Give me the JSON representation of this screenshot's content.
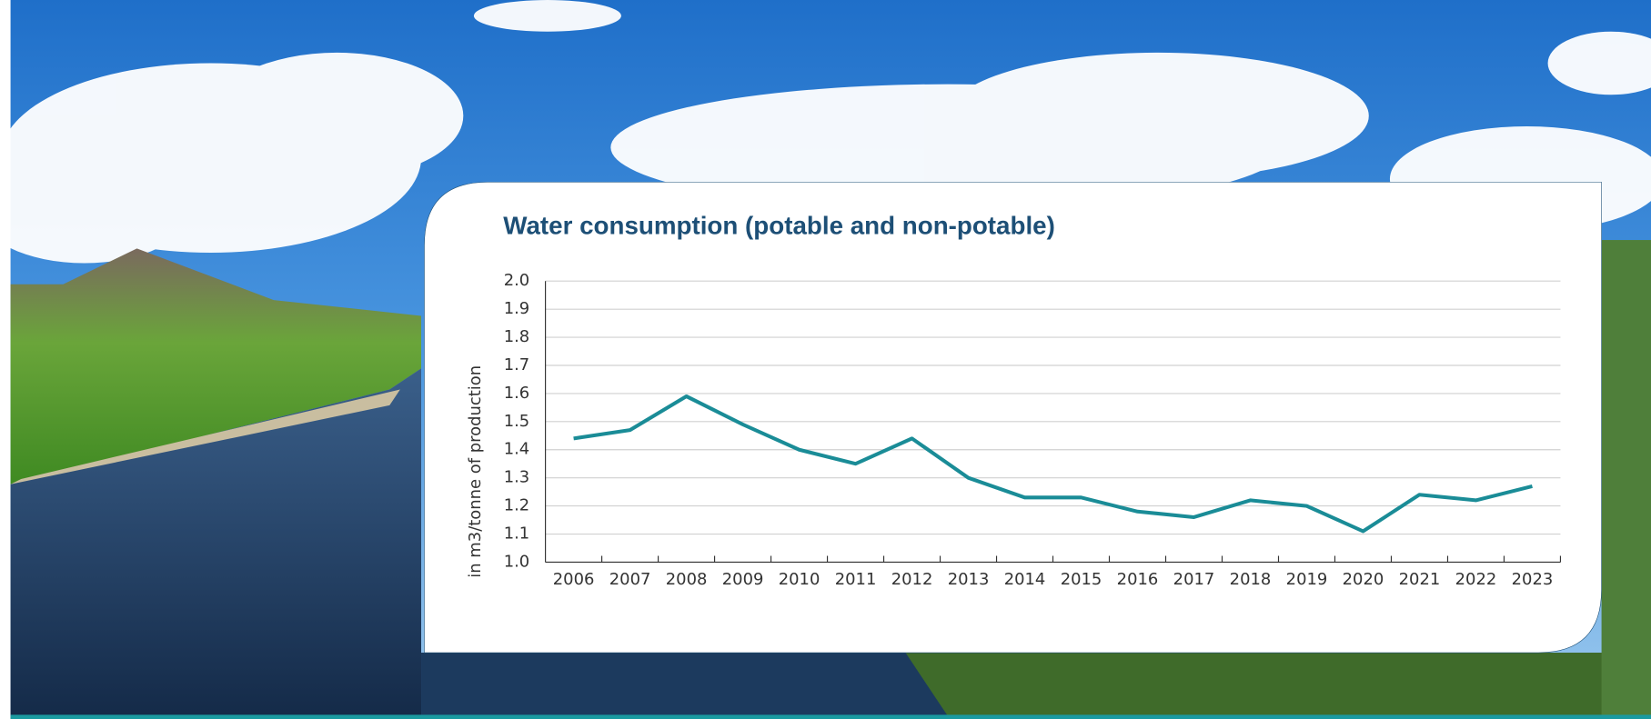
{
  "chart_data": {
    "type": "line",
    "title": "Water consumption (potable and non-potable)",
    "y_label": "in m3/tonne of production",
    "categories": [
      "2006",
      "2007",
      "2008",
      "2009",
      "2010",
      "2011",
      "2012",
      "2013",
      "2014",
      "2015",
      "2016",
      "2017",
      "2018",
      "2019",
      "2020",
      "2021",
      "2022",
      "2023"
    ],
    "series": [
      {
        "name": "Water consumption",
        "color": "#1a8c97",
        "values": [
          1.44,
          1.47,
          1.59,
          1.49,
          1.4,
          1.35,
          1.44,
          1.3,
          1.23,
          1.23,
          1.18,
          1.16,
          1.22,
          1.2,
          1.11,
          1.24,
          1.22,
          1.27
        ]
      }
    ],
    "ylim": [
      1.0,
      2.0
    ],
    "yticks": [
      {
        "value": 1.0,
        "label": "1.0"
      },
      1.1,
      1.2,
      1.3,
      1.4,
      1.5,
      1.6,
      1.7,
      1.8,
      1.9,
      {
        "value": 2.0,
        "label": "2.0"
      }
    ],
    "grid": true
  }
}
